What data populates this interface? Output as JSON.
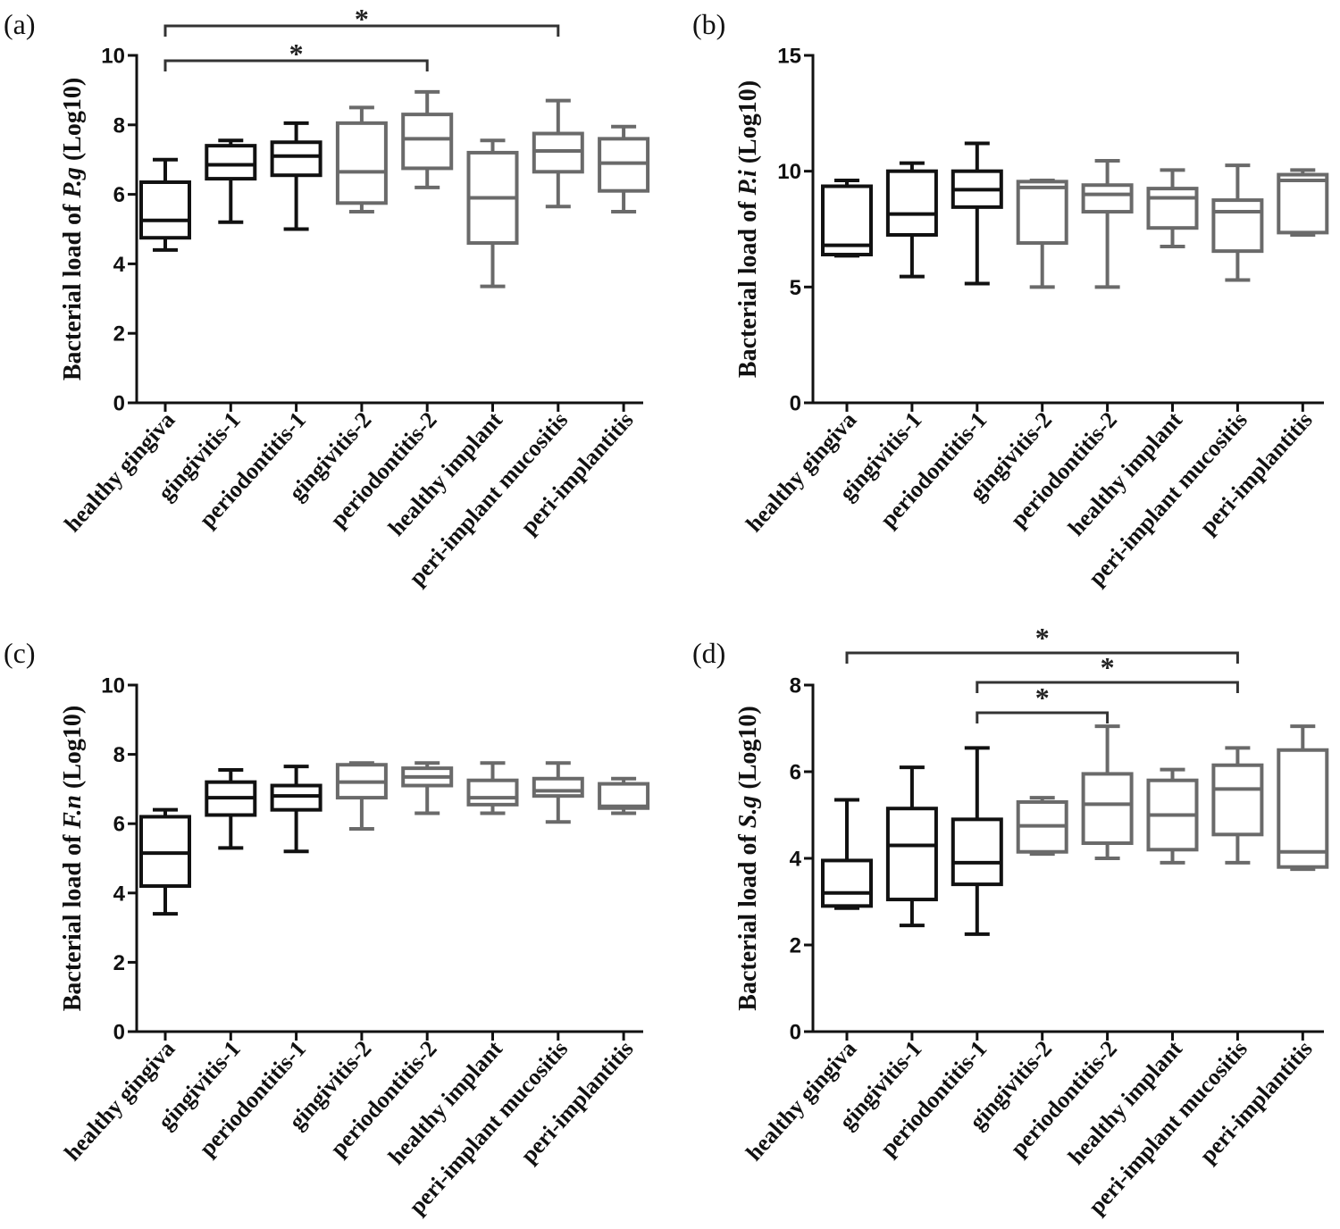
{
  "chart_data": [
    {
      "panel_label": "(a)",
      "type": "box",
      "title": "",
      "xlabel": "",
      "ylabel": {
        "prefix": "Bacterial load of ",
        "species": "P.g",
        "suffix": " (Log10)"
      },
      "ylim": [
        0,
        10
      ],
      "yticks": [
        0,
        2,
        4,
        6,
        8,
        10
      ],
      "categories": [
        "healthy gingiva",
        "gingivitis-1",
        "periodontitis-1",
        "gingivitis-2",
        "periodontitis-2",
        "healthy implant",
        "peri-implant mucositis",
        "peri-implantitis"
      ],
      "boxes": [
        {
          "min": 4.4,
          "q1": 4.75,
          "median": 5.25,
          "q3": 6.35,
          "max": 7.0,
          "color": "#111111"
        },
        {
          "min": 5.2,
          "q1": 6.45,
          "median": 6.85,
          "q3": 7.4,
          "max": 7.55,
          "color": "#111111"
        },
        {
          "min": 5.0,
          "q1": 6.55,
          "median": 7.1,
          "q3": 7.5,
          "max": 8.05,
          "color": "#111111"
        },
        {
          "min": 5.5,
          "q1": 5.75,
          "median": 6.65,
          "q3": 8.05,
          "max": 8.5,
          "color": "#6a6a6a"
        },
        {
          "min": 6.2,
          "q1": 6.75,
          "median": 7.6,
          "q3": 8.3,
          "max": 8.95,
          "color": "#6a6a6a"
        },
        {
          "min": 3.35,
          "q1": 4.6,
          "median": 5.9,
          "q3": 7.2,
          "max": 7.55,
          "color": "#6a6a6a"
        },
        {
          "min": 5.65,
          "q1": 6.65,
          "median": 7.25,
          "q3": 7.75,
          "max": 8.7,
          "color": "#6a6a6a"
        },
        {
          "min": 5.5,
          "q1": 6.1,
          "median": 6.9,
          "q3": 7.6,
          "max": 7.95,
          "color": "#6a6a6a"
        }
      ],
      "significance": [
        {
          "from": 0,
          "to": 6,
          "label": "*"
        },
        {
          "from": 0,
          "to": 4,
          "label": "*"
        }
      ]
    },
    {
      "panel_label": "(b)",
      "type": "box",
      "title": "",
      "xlabel": "",
      "ylabel": {
        "prefix": "Bacterial load of ",
        "species": "P.i",
        "suffix": " (Log10)"
      },
      "ylim": [
        0,
        15
      ],
      "yticks": [
        0,
        5,
        10,
        15
      ],
      "categories": [
        "healthy gingiva",
        "gingivitis-1",
        "periodontitis-1",
        "gingivitis-2",
        "periodontitis-2",
        "healthy implant",
        "peri-implant mucositis",
        "peri-implantitis"
      ],
      "boxes": [
        {
          "min": 6.35,
          "q1": 6.4,
          "median": 6.8,
          "q3": 9.35,
          "max": 9.6,
          "color": "#111111"
        },
        {
          "min": 5.45,
          "q1": 7.25,
          "median": 8.15,
          "q3": 10.0,
          "max": 10.35,
          "color": "#111111"
        },
        {
          "min": 5.15,
          "q1": 8.45,
          "median": 9.2,
          "q3": 10.0,
          "max": 11.2,
          "color": "#111111"
        },
        {
          "min": 5.0,
          "q1": 6.9,
          "median": 9.3,
          "q3": 9.55,
          "max": 9.6,
          "color": "#6a6a6a"
        },
        {
          "min": 5.0,
          "q1": 8.25,
          "median": 9.0,
          "q3": 9.4,
          "max": 10.45,
          "color": "#6a6a6a"
        },
        {
          "min": 6.75,
          "q1": 7.55,
          "median": 8.85,
          "q3": 9.25,
          "max": 10.05,
          "color": "#6a6a6a"
        },
        {
          "min": 5.3,
          "q1": 6.55,
          "median": 8.25,
          "q3": 8.75,
          "max": 10.25,
          "color": "#6a6a6a"
        },
        {
          "min": 7.25,
          "q1": 7.35,
          "median": 9.6,
          "q3": 9.85,
          "max": 10.05,
          "color": "#6a6a6a"
        }
      ],
      "significance": []
    },
    {
      "panel_label": "(c)",
      "type": "box",
      "title": "",
      "xlabel": "",
      "ylabel": {
        "prefix": "Bacterial load of ",
        "species": "F.n",
        "suffix": " (Log10)"
      },
      "ylim": [
        0,
        10
      ],
      "yticks": [
        0,
        2,
        4,
        6,
        8,
        10
      ],
      "categories": [
        "healthy gingiva",
        "gingivitis-1",
        "periodontitis-1",
        "gingivitis-2",
        "periodontitis-2",
        "healthy implant",
        "peri-implant mucositis",
        "peri-implantitis"
      ],
      "boxes": [
        {
          "min": 3.4,
          "q1": 4.2,
          "median": 5.15,
          "q3": 6.2,
          "max": 6.4,
          "color": "#111111"
        },
        {
          "min": 5.3,
          "q1": 6.25,
          "median": 6.75,
          "q3": 7.2,
          "max": 7.55,
          "color": "#111111"
        },
        {
          "min": 5.2,
          "q1": 6.4,
          "median": 6.8,
          "q3": 7.1,
          "max": 7.65,
          "color": "#111111"
        },
        {
          "min": 5.85,
          "q1": 6.75,
          "median": 7.2,
          "q3": 7.7,
          "max": 7.75,
          "color": "#6a6a6a"
        },
        {
          "min": 6.3,
          "q1": 7.1,
          "median": 7.35,
          "q3": 7.6,
          "max": 7.75,
          "color": "#6a6a6a"
        },
        {
          "min": 6.3,
          "q1": 6.55,
          "median": 6.75,
          "q3": 7.25,
          "max": 7.75,
          "color": "#6a6a6a"
        },
        {
          "min": 6.05,
          "q1": 6.8,
          "median": 6.95,
          "q3": 7.3,
          "max": 7.75,
          "color": "#6a6a6a"
        },
        {
          "min": 6.3,
          "q1": 6.45,
          "median": 6.5,
          "q3": 7.15,
          "max": 7.3,
          "color": "#6a6a6a"
        }
      ],
      "significance": []
    },
    {
      "panel_label": "(d)",
      "type": "box",
      "title": "",
      "xlabel": "",
      "ylabel": {
        "prefix": "Bacterial load of ",
        "species": "S.g",
        "suffix": " (Log10)"
      },
      "ylim": [
        0,
        8
      ],
      "yticks": [
        0,
        2,
        4,
        6,
        8
      ],
      "categories": [
        "healthy gingiva",
        "gingivitis-1",
        "periodontitis-1",
        "gingivitis-2",
        "periodontitis-2",
        "healthy implant",
        "peri-implant mucositis",
        "peri-implantitis"
      ],
      "boxes": [
        {
          "min": 2.85,
          "q1": 2.9,
          "median": 3.2,
          "q3": 3.95,
          "max": 5.35,
          "color": "#111111"
        },
        {
          "min": 2.45,
          "q1": 3.05,
          "median": 4.3,
          "q3": 5.15,
          "max": 6.1,
          "color": "#111111"
        },
        {
          "min": 2.25,
          "q1": 3.4,
          "median": 3.9,
          "q3": 4.9,
          "max": 6.55,
          "color": "#111111"
        },
        {
          "min": 4.1,
          "q1": 4.15,
          "median": 4.75,
          "q3": 5.3,
          "max": 5.4,
          "color": "#6a6a6a"
        },
        {
          "min": 4.0,
          "q1": 4.35,
          "median": 5.25,
          "q3": 5.95,
          "max": 7.05,
          "color": "#6a6a6a"
        },
        {
          "min": 3.9,
          "q1": 4.2,
          "median": 5.0,
          "q3": 5.8,
          "max": 6.05,
          "color": "#6a6a6a"
        },
        {
          "min": 3.9,
          "q1": 4.55,
          "median": 5.6,
          "q3": 6.15,
          "max": 6.55,
          "color": "#6a6a6a"
        },
        {
          "min": 3.75,
          "q1": 3.8,
          "median": 4.15,
          "q3": 6.5,
          "max": 7.05,
          "color": "#6a6a6a"
        }
      ],
      "significance": [
        {
          "from": 0,
          "to": 6,
          "label": "*"
        },
        {
          "from": 2,
          "to": 6,
          "label": "*"
        },
        {
          "from": 2,
          "to": 4,
          "label": "*"
        }
      ]
    }
  ]
}
